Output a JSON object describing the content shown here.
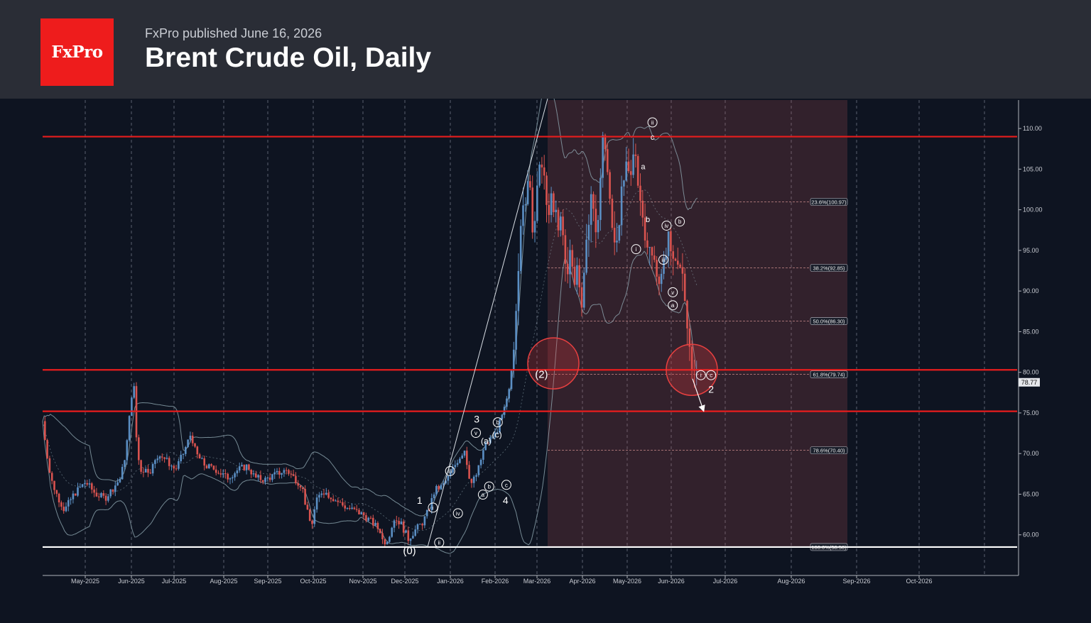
{
  "header": {
    "logo_text": "FxPro",
    "published": "FxPro published June 16, 2026",
    "title": "Brent Crude Oil, Daily"
  },
  "chart_data": {
    "type": "candlestick",
    "ylim": [
      55,
      113.5
    ],
    "yticks": [
      "60.00",
      "65.00",
      "70.00",
      "75.00",
      "80.00",
      "85.00",
      "90.00",
      "95.00",
      "100.00",
      "105.00",
      "110.00"
    ],
    "xticks": [
      "May-2025",
      "Jun-2025",
      "Jul-2025",
      "Aug-2025",
      "Sep-2025",
      "Oct-2025",
      "Nov-2025",
      "Dec-2025",
      "Jan-2026",
      "Feb-2026",
      "Mar-2026",
      "Apr-2026",
      "May-2026",
      "Jun-2026",
      "Jul-2026",
      "Aug-2026",
      "Sep-2026",
      "Oct-2026"
    ],
    "last_price": "78.77",
    "grid": true,
    "horizontal_levels": [
      {
        "value": 109,
        "color": "#e81d1d"
      },
      {
        "value": 80.3,
        "color": "#e81d1d"
      },
      {
        "value": 75.2,
        "color": "#e81d1d"
      },
      {
        "value": 58.5,
        "color": "#ffffff"
      }
    ],
    "fibonacci": [
      {
        "label": "23.6%(100.97)",
        "value": 100.97
      },
      {
        "label": "38.2%(92.85)",
        "value": 92.85
      },
      {
        "label": "50.0%(86.30)",
        "value": 86.3
      },
      {
        "label": "61.8%(79.74)",
        "value": 79.74
      },
      {
        "label": "78.6%(70.40)",
        "value": 70.4
      },
      {
        "label": "100.0%(58.50)",
        "value": 58.5
      }
    ],
    "price_path": [
      [
        0,
        74
      ],
      [
        5,
        70.5
      ],
      [
        10,
        67
      ],
      [
        18,
        65
      ],
      [
        28,
        63
      ],
      [
        40,
        65
      ],
      [
        55,
        66.5
      ],
      [
        68,
        65
      ],
      [
        80,
        64.5
      ],
      [
        92,
        66
      ],
      [
        100,
        67
      ],
      [
        106,
        70
      ],
      [
        110,
        73
      ],
      [
        113,
        77
      ],
      [
        117,
        78
      ],
      [
        121,
        70
      ],
      [
        126,
        68
      ],
      [
        138,
        68
      ],
      [
        150,
        70
      ],
      [
        160,
        69
      ],
      [
        170,
        68
      ],
      [
        180,
        70
      ],
      [
        190,
        72.5
      ],
      [
        196,
        70
      ],
      [
        208,
        68.5
      ],
      [
        222,
        68
      ],
      [
        236,
        67
      ],
      [
        250,
        68
      ],
      [
        262,
        68.5
      ],
      [
        272,
        67
      ],
      [
        285,
        66.8
      ],
      [
        300,
        67.5
      ],
      [
        312,
        68
      ],
      [
        322,
        67
      ],
      [
        332,
        66
      ],
      [
        338,
        63
      ],
      [
        344,
        61
      ],
      [
        350,
        64
      ],
      [
        358,
        65.5
      ],
      [
        372,
        64.5
      ],
      [
        386,
        63.5
      ],
      [
        398,
        63
      ],
      [
        410,
        62.5
      ],
      [
        422,
        61.5
      ],
      [
        432,
        60.5
      ],
      [
        436,
        59
      ],
      [
        442,
        59.6
      ],
      [
        450,
        62
      ],
      [
        458,
        61.5
      ],
      [
        468,
        59.5
      ],
      [
        476,
        60.5
      ],
      [
        486,
        61.5
      ],
      [
        494,
        63
      ],
      [
        502,
        65.5
      ],
      [
        512,
        66
      ],
      [
        522,
        67.5
      ],
      [
        530,
        69
      ],
      [
        540,
        70.5
      ],
      [
        548,
        66.2
      ],
      [
        556,
        67.5
      ],
      [
        566,
        71
      ],
      [
        580,
        72.5
      ],
      [
        590,
        75
      ],
      [
        598,
        78
      ],
      [
        604,
        85
      ],
      [
        608,
        92
      ],
      [
        612,
        99
      ],
      [
        618,
        100
      ],
      [
        622,
        106
      ],
      [
        628,
        97
      ],
      [
        634,
        103
      ],
      [
        640,
        107
      ],
      [
        646,
        98
      ],
      [
        652,
        102
      ],
      [
        660,
        97
      ],
      [
        664,
        99
      ],
      [
        670,
        92
      ],
      [
        676,
        95
      ],
      [
        680,
        90
      ],
      [
        684,
        93
      ],
      [
        690,
        89
      ],
      [
        696,
        96
      ],
      [
        702,
        102
      ],
      [
        708,
        96
      ],
      [
        714,
        104
      ],
      [
        718,
        110
      ],
      [
        722,
        106
      ],
      [
        728,
        98
      ],
      [
        734,
        96
      ],
      [
        740,
        101
      ],
      [
        746,
        105
      ],
      [
        752,
        103
      ],
      [
        758,
        108
      ],
      [
        762,
        104
      ],
      [
        768,
        99
      ],
      [
        774,
        96
      ],
      [
        780,
        94
      ],
      [
        786,
        93
      ],
      [
        790,
        91
      ],
      [
        794,
        92
      ],
      [
        800,
        97
      ],
      [
        806,
        94
      ],
      [
        812,
        95
      ],
      [
        818,
        92
      ],
      [
        822,
        88
      ],
      [
        826,
        84.5
      ],
      [
        830,
        82
      ],
      [
        834,
        79.5
      ],
      [
        838,
        79
      ]
    ],
    "wave_labels": [
      {
        "text": "(0)",
        "x": 465,
        "v": 57.6,
        "circled": false,
        "size": 15
      },
      {
        "text": "1",
        "x": 478,
        "v": 63.8,
        "circled": false,
        "size": 14
      },
      {
        "text": "i",
        "x": 495,
        "v": 63,
        "circled": true
      },
      {
        "text": "ii",
        "x": 503,
        "v": 58.7,
        "circled": true
      },
      {
        "text": "iii",
        "x": 517,
        "v": 67.5,
        "circled": true
      },
      {
        "text": "iv",
        "x": 527,
        "v": 62.3,
        "circled": true
      },
      {
        "text": "a",
        "x": 559,
        "v": 64.6,
        "circled": true
      },
      {
        "text": "3",
        "x": 551,
        "v": 73.8,
        "circled": false,
        "size": 14
      },
      {
        "text": "v",
        "x": 550,
        "v": 72.2,
        "circled": true
      },
      {
        "text": "b",
        "x": 567,
        "v": 65.6,
        "circled": true
      },
      {
        "text": "(a)",
        "x": 563,
        "v": 71.2,
        "circled": false,
        "size": 12
      },
      {
        "text": "b",
        "x": 578,
        "v": 73.5,
        "circled": true
      },
      {
        "text": "(c)",
        "x": 577,
        "v": 72,
        "circled": false,
        "size": 12
      },
      {
        "text": "c",
        "x": 589,
        "v": 65.8,
        "circled": true
      },
      {
        "text": "4",
        "x": 588,
        "v": 63.8,
        "circled": false,
        "size": 14
      },
      {
        "text": "(2)",
        "x": 634,
        "v": 79.3,
        "circled": false,
        "size": 15
      },
      {
        "text": "ii",
        "x": 776,
        "v": 110.4,
        "circled": true
      },
      {
        "text": "c",
        "x": 776,
        "v": 108.6,
        "circled": false,
        "size": 11
      },
      {
        "text": "a",
        "x": 764,
        "v": 105,
        "circled": false,
        "size": 11
      },
      {
        "text": "b",
        "x": 770,
        "v": 98.5,
        "circled": false,
        "size": 11
      },
      {
        "text": "i",
        "x": 755,
        "v": 94.8,
        "circled": true
      },
      {
        "text": "iv",
        "x": 794,
        "v": 97.7,
        "circled": true
      },
      {
        "text": "b",
        "x": 811,
        "v": 98.2,
        "circled": true
      },
      {
        "text": "iii",
        "x": 790,
        "v": 93.5,
        "circled": true
      },
      {
        "text": "v",
        "x": 802,
        "v": 89.5,
        "circled": true
      },
      {
        "text": "a",
        "x": 802,
        "v": 87.9,
        "circled": true
      },
      {
        "text": "i",
        "x": 838,
        "v": 79.3,
        "circled": true
      },
      {
        "text": "c",
        "x": 851,
        "v": 79.3,
        "circled": true
      },
      {
        "text": "2",
        "x": 851,
        "v": 77.5,
        "circled": false,
        "size": 14
      }
    ]
  },
  "colors": {
    "up": "#5b8fc4",
    "down": "#d9534f",
    "band": "#8fa6b0",
    "highlight_zone": "rgba(180,80,85,0.22)"
  }
}
